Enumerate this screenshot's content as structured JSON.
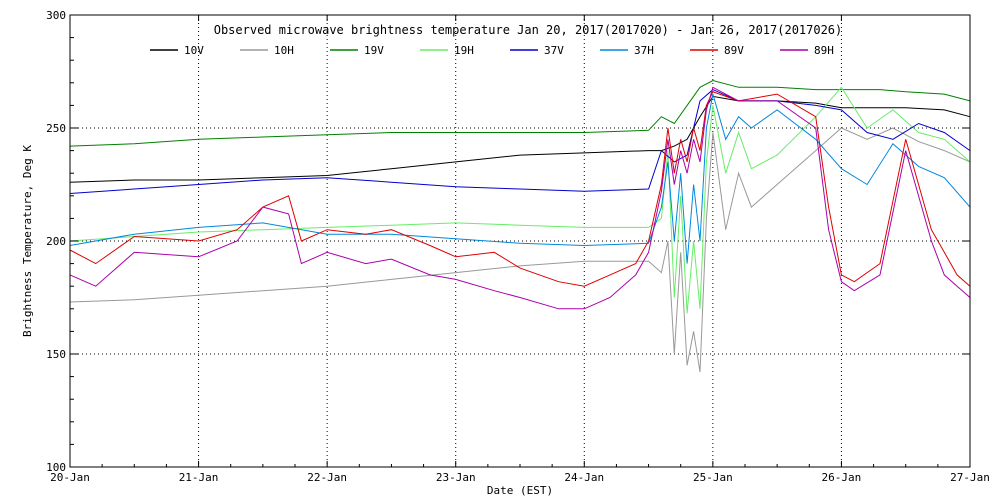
{
  "chart_data": {
    "type": "line",
    "title": "Observed microwave brightness temperature Jan 20, 2017(2017020) - Jan 26, 2017(2017026)",
    "xlabel": "Date (EST)",
    "ylabel": "Brightness Temperature, Deg K",
    "xlim": [
      0,
      7
    ],
    "ylim": [
      100,
      300
    ],
    "xticks": [
      0,
      1,
      2,
      3,
      4,
      5,
      6,
      7
    ],
    "xtick_labels": [
      "20-Jan",
      "21-Jan",
      "22-Jan",
      "23-Jan",
      "24-Jan",
      "25-Jan",
      "26-Jan",
      "27-Jan"
    ],
    "yticks": [
      100,
      150,
      200,
      250,
      300
    ],
    "ytick_labels": [
      "100",
      "150",
      "200",
      "250",
      "300"
    ],
    "grid": true,
    "legend_position": "top",
    "series": [
      {
        "name": "10V",
        "color": "#000000",
        "x": [
          0,
          0.5,
          1,
          1.5,
          2,
          2.5,
          3,
          3.5,
          4,
          4.5,
          4.6,
          4.7,
          4.8,
          4.9,
          5,
          5.2,
          5.5,
          5.8,
          6,
          6.3,
          6.5,
          6.8,
          7
        ],
        "y": [
          226,
          227,
          227,
          228,
          229,
          232,
          235,
          238,
          239,
          240,
          240,
          242,
          245,
          255,
          264,
          262,
          262,
          261,
          259,
          259,
          259,
          258,
          255
        ]
      },
      {
        "name": "10H",
        "color": "#999999",
        "x": [
          0,
          0.5,
          1,
          1.5,
          2,
          2.5,
          3,
          3.5,
          4,
          4.5,
          4.6,
          4.65,
          4.7,
          4.75,
          4.8,
          4.85,
          4.9,
          4.95,
          5,
          5.1,
          5.2,
          5.3,
          5.5,
          5.8,
          6,
          6.2,
          6.4,
          6.6,
          6.8,
          7
        ],
        "y": [
          173,
          174,
          176,
          178,
          180,
          183,
          186,
          189,
          191,
          191,
          186,
          200,
          150,
          195,
          145,
          160,
          142,
          210,
          248,
          205,
          230,
          215,
          225,
          240,
          250,
          245,
          250,
          244,
          240,
          235
        ]
      },
      {
        "name": "19V",
        "color": "#008000",
        "x": [
          0,
          0.5,
          1,
          1.5,
          2,
          2.5,
          3,
          3.5,
          4,
          4.5,
          4.6,
          4.7,
          4.8,
          4.9,
          5,
          5.2,
          5.5,
          5.8,
          6,
          6.3,
          6.5,
          6.8,
          7
        ],
        "y": [
          242,
          243,
          245,
          246,
          247,
          248,
          248,
          248,
          248,
          249,
          255,
          252,
          260,
          268,
          271,
          268,
          268,
          267,
          267,
          267,
          266,
          265,
          262
        ]
      },
      {
        "name": "19H",
        "color": "#66ee66",
        "x": [
          0,
          0.5,
          1,
          1.5,
          2,
          2.5,
          3,
          3.5,
          4,
          4.5,
          4.6,
          4.65,
          4.7,
          4.75,
          4.8,
          4.85,
          4.9,
          4.95,
          5,
          5.1,
          5.2,
          5.3,
          5.5,
          5.8,
          6,
          6.2,
          6.4,
          6.6,
          6.8,
          7
        ],
        "y": [
          200,
          202,
          204,
          205,
          206,
          207,
          208,
          207,
          206,
          206,
          210,
          240,
          175,
          220,
          168,
          200,
          170,
          235,
          260,
          230,
          248,
          232,
          238,
          255,
          268,
          250,
          258,
          248,
          245,
          235
        ]
      },
      {
        "name": "37V",
        "color": "#0000cc",
        "x": [
          0,
          0.5,
          1,
          1.5,
          2,
          2.5,
          3,
          3.5,
          4,
          4.5,
          4.6,
          4.7,
          4.8,
          4.9,
          5,
          5.2,
          5.5,
          5.8,
          6,
          6.2,
          6.4,
          6.6,
          6.8,
          7
        ],
        "y": [
          221,
          223,
          225,
          227,
          228,
          226,
          224,
          223,
          222,
          223,
          240,
          235,
          238,
          262,
          267,
          262,
          262,
          260,
          258,
          248,
          245,
          252,
          248,
          240
        ]
      },
      {
        "name": "37H",
        "color": "#0088dd",
        "x": [
          0,
          0.5,
          1,
          1.5,
          2,
          2.5,
          3,
          3.5,
          4,
          4.5,
          4.6,
          4.65,
          4.7,
          4.75,
          4.8,
          4.85,
          4.9,
          4.95,
          5,
          5.1,
          5.2,
          5.3,
          5.5,
          5.8,
          6,
          6.2,
          6.4,
          6.6,
          6.8,
          7
        ],
        "y": [
          198,
          203,
          206,
          208,
          203,
          203,
          201,
          199,
          198,
          199,
          215,
          235,
          200,
          230,
          190,
          225,
          200,
          250,
          265,
          245,
          255,
          250,
          258,
          245,
          232,
          225,
          243,
          233,
          228,
          215
        ]
      },
      {
        "name": "89V",
        "color": "#dd0000",
        "x": [
          0,
          0.2,
          0.5,
          1,
          1.3,
          1.5,
          1.7,
          1.8,
          2,
          2.3,
          2.5,
          2.8,
          3,
          3.3,
          3.5,
          3.8,
          4,
          4.2,
          4.4,
          4.5,
          4.6,
          4.65,
          4.7,
          4.75,
          4.8,
          4.85,
          4.9,
          4.95,
          5,
          5.2,
          5.5,
          5.8,
          5.9,
          6,
          6.1,
          6.3,
          6.5,
          6.7,
          6.8,
          6.9,
          7
        ],
        "y": [
          196,
          190,
          202,
          200,
          205,
          215,
          220,
          200,
          205,
          203,
          205,
          198,
          193,
          195,
          188,
          182,
          180,
          185,
          190,
          200,
          225,
          250,
          230,
          245,
          235,
          250,
          240,
          260,
          266,
          262,
          265,
          255,
          215,
          185,
          182,
          190,
          245,
          205,
          195,
          185,
          180
        ]
      },
      {
        "name": "89H",
        "color": "#aa00aa",
        "x": [
          0,
          0.2,
          0.5,
          1,
          1.3,
          1.5,
          1.7,
          1.8,
          2,
          2.3,
          2.5,
          2.8,
          3,
          3.3,
          3.5,
          3.8,
          4,
          4.2,
          4.4,
          4.5,
          4.6,
          4.65,
          4.7,
          4.75,
          4.8,
          4.85,
          4.9,
          4.95,
          5,
          5.2,
          5.5,
          5.8,
          5.9,
          6,
          6.1,
          6.3,
          6.5,
          6.7,
          6.8,
          6.9,
          7
        ],
        "y": [
          185,
          180,
          195,
          193,
          200,
          215,
          212,
          190,
          195,
          190,
          192,
          185,
          183,
          178,
          175,
          170,
          170,
          175,
          185,
          195,
          222,
          245,
          225,
          240,
          230,
          245,
          235,
          258,
          268,
          262,
          262,
          250,
          205,
          182,
          178,
          185,
          240,
          200,
          185,
          180,
          175
        ]
      }
    ]
  }
}
